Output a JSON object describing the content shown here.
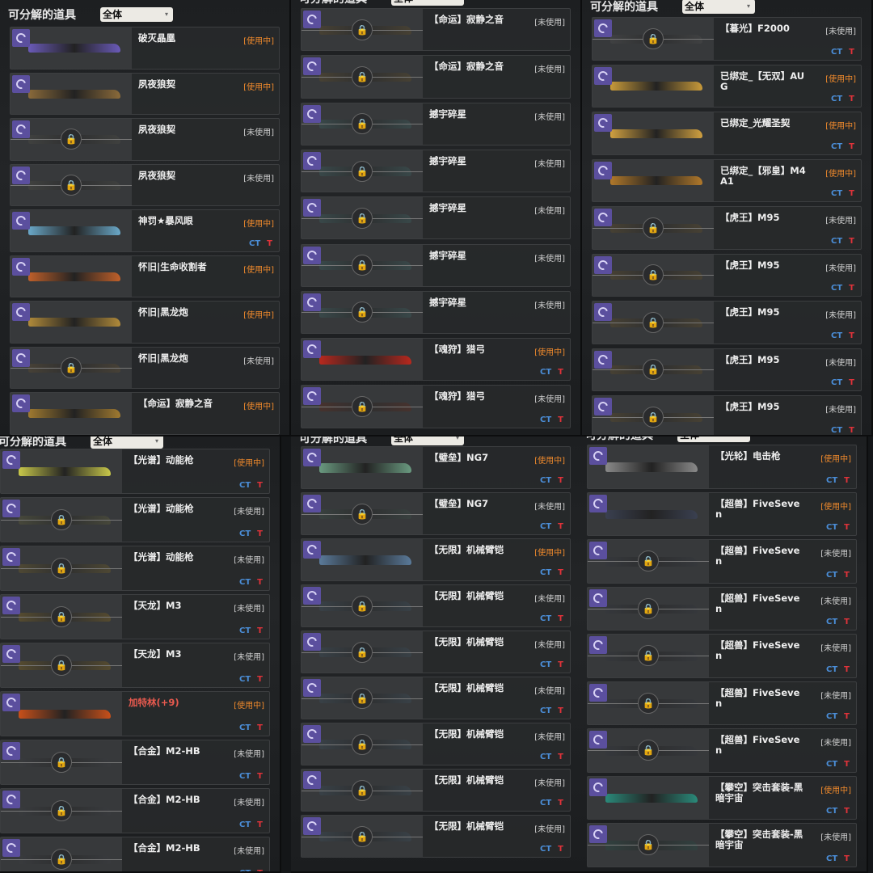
{
  "panels": [
    {
      "title": "可分解的道具",
      "filter": "全体",
      "items": [
        {
          "name": "破灭晶凰",
          "status": "[使用中]",
          "in_use": true,
          "ct_t": false,
          "locked": false,
          "art": "#6a5ab8"
        },
        {
          "name": "夙夜狼契",
          "status": "[使用中]",
          "in_use": true,
          "ct_t": false,
          "locked": false,
          "art": "#8a6a3a"
        },
        {
          "name": "夙夜狼契",
          "status": "[未使用]",
          "in_use": false,
          "ct_t": false,
          "locked": true,
          "art": "#4a4a44"
        },
        {
          "name": "夙夜狼契",
          "status": "[未使用]",
          "in_use": false,
          "ct_t": false,
          "locked": true,
          "art": "#4a4a44"
        },
        {
          "name": "神罚★暴风眼",
          "status": "[使用中]",
          "in_use": true,
          "ct_t": true,
          "locked": false,
          "art": "#6aa8c8"
        },
        {
          "name": "怀旧|生命收割者",
          "status": "[使用中]",
          "in_use": true,
          "ct_t": false,
          "locked": false,
          "art": "#c0602a"
        },
        {
          "name": "怀旧|黑龙炮",
          "status": "[使用中]",
          "in_use": true,
          "ct_t": false,
          "locked": false,
          "art": "#b08a3a"
        },
        {
          "name": "怀旧|黑龙炮",
          "status": "[未使用]",
          "in_use": false,
          "ct_t": false,
          "locked": true,
          "art": "#5a4a30"
        },
        {
          "name": "【命运】寂静之音",
          "status": "[使用中]",
          "in_use": true,
          "ct_t": false,
          "locked": false,
          "art": "#a07a30"
        }
      ]
    },
    {
      "title": "可分解的道具",
      "filter": "全体",
      "items": [
        {
          "name": "【命运】寂静之音",
          "status": "[未使用]",
          "in_use": false,
          "ct_t": false,
          "locked": true,
          "art": "#5a4a2a"
        },
        {
          "name": "【命运】寂静之音",
          "status": "[未使用]",
          "in_use": false,
          "ct_t": false,
          "locked": true,
          "art": "#5a4a2a"
        },
        {
          "name": "撼宇碎星",
          "status": "[未使用]",
          "in_use": false,
          "ct_t": false,
          "locked": true,
          "art": "#3a5a5a"
        },
        {
          "name": "撼宇碎星",
          "status": "[未使用]",
          "in_use": false,
          "ct_t": false,
          "locked": true,
          "art": "#3a5a5a"
        },
        {
          "name": "撼宇碎星",
          "status": "[未使用]",
          "in_use": false,
          "ct_t": false,
          "locked": true,
          "art": "#3a5a5a"
        },
        {
          "name": "撼宇碎星",
          "status": "[未使用]",
          "in_use": false,
          "ct_t": false,
          "locked": true,
          "art": "#3a5a5a"
        },
        {
          "name": "撼宇碎星",
          "status": "[未使用]",
          "in_use": false,
          "ct_t": false,
          "locked": true,
          "art": "#3a5a5a"
        },
        {
          "name": "【魂狩】猎弓",
          "status": "[使用中]",
          "in_use": true,
          "ct_t": true,
          "locked": false,
          "art": "#b8281e"
        },
        {
          "name": "【魂狩】猎弓",
          "status": "[未使用]",
          "in_use": false,
          "ct_t": true,
          "locked": true,
          "art": "#5a2a1e"
        }
      ]
    },
    {
      "title": "可分解的道具",
      "filter": "全体",
      "items": [
        {
          "name": "【暮光】F2000",
          "status": "[未使用]",
          "in_use": false,
          "ct_t": true,
          "locked": true,
          "art": "#4a4a4a"
        },
        {
          "name": "已绑定_【无双】AUG",
          "status": "[使用中]",
          "in_use": true,
          "ct_t": true,
          "locked": false,
          "art": "#c89a3a"
        },
        {
          "name": "已绑定_光耀圣契",
          "status": "[使用中]",
          "in_use": true,
          "ct_t": true,
          "locked": false,
          "art": "#d0a040"
        },
        {
          "name": "已绑定_【邪皇】M4A1",
          "status": "[使用中]",
          "in_use": true,
          "ct_t": true,
          "locked": false,
          "art": "#b0782a"
        },
        {
          "name": "【虎王】M95",
          "status": "[未使用]",
          "in_use": false,
          "ct_t": true,
          "locked": true,
          "art": "#5a4a2a"
        },
        {
          "name": "【虎王】M95",
          "status": "[未使用]",
          "in_use": false,
          "ct_t": true,
          "locked": true,
          "art": "#5a4a2a"
        },
        {
          "name": "【虎王】M95",
          "status": "[未使用]",
          "in_use": false,
          "ct_t": true,
          "locked": true,
          "art": "#5a4a2a"
        },
        {
          "name": "【虎王】M95",
          "status": "[未使用]",
          "in_use": false,
          "ct_t": true,
          "locked": true,
          "art": "#5a4a2a"
        },
        {
          "name": "【虎王】M95",
          "status": "[未使用]",
          "in_use": false,
          "ct_t": true,
          "locked": true,
          "art": "#5a4a2a"
        }
      ]
    },
    {
      "title": "可分解的道具",
      "filter": "全体",
      "items": [
        {
          "name": "【光谱】动能枪",
          "status": "[使用中]",
          "in_use": true,
          "ct_t": true,
          "locked": false,
          "art": "#c8c84a"
        },
        {
          "name": "【光谱】动能枪",
          "status": "[未使用]",
          "in_use": false,
          "ct_t": true,
          "locked": true,
          "art": "#5a5a3a"
        },
        {
          "name": "【光谱】动能枪",
          "status": "[未使用]",
          "in_use": false,
          "ct_t": true,
          "locked": true,
          "art": "#6a5a2a"
        },
        {
          "name": "【天龙】M3",
          "status": "[未使用]",
          "in_use": false,
          "ct_t": true,
          "locked": true,
          "art": "#7a6020"
        },
        {
          "name": "【天龙】M3",
          "status": "[未使用]",
          "in_use": false,
          "ct_t": true,
          "locked": true,
          "art": "#7a6020"
        },
        {
          "name": "加特林(+9)",
          "status": "[使用中]",
          "in_use": true,
          "ct_t": true,
          "locked": false,
          "art": "#c8501a",
          "highlight": true
        },
        {
          "name": "【合金】M2-HB",
          "status": "[未使用]",
          "in_use": false,
          "ct_t": true,
          "locked": true,
          "art": "#3a3c40"
        },
        {
          "name": "【合金】M2-HB",
          "status": "[未使用]",
          "in_use": false,
          "ct_t": true,
          "locked": true,
          "art": "#3a3c40"
        },
        {
          "name": "【合金】M2-HB",
          "status": "[未使用]",
          "in_use": false,
          "ct_t": true,
          "locked": true,
          "art": "#3a3c40"
        }
      ]
    },
    {
      "title": "可分解的道具",
      "filter": "全体",
      "items": [
        {
          "name": "【璧垒】NG7",
          "status": "[使用中]",
          "in_use": true,
          "ct_t": true,
          "locked": false,
          "art": "#6a9a80"
        },
        {
          "name": "【璧垒】NG7",
          "status": "[未使用]",
          "in_use": false,
          "ct_t": true,
          "locked": true,
          "art": "#3a4a44"
        },
        {
          "name": "【无限】机械臂铠",
          "status": "[使用中]",
          "in_use": true,
          "ct_t": true,
          "locked": false,
          "art": "#5a7a9a"
        },
        {
          "name": "【无限】机械臂铠",
          "status": "[未使用]",
          "in_use": false,
          "ct_t": true,
          "locked": true,
          "art": "#3a4a55"
        },
        {
          "name": "【无限】机械臂铠",
          "status": "[未使用]",
          "in_use": false,
          "ct_t": true,
          "locked": true,
          "art": "#3a4a55"
        },
        {
          "name": "【无限】机械臂铠",
          "status": "[未使用]",
          "in_use": false,
          "ct_t": true,
          "locked": true,
          "art": "#3a4a55"
        },
        {
          "name": "【无限】机械臂铠",
          "status": "[未使用]",
          "in_use": false,
          "ct_t": true,
          "locked": true,
          "art": "#3a4a55"
        },
        {
          "name": "【无限】机械臂铠",
          "status": "[未使用]",
          "in_use": false,
          "ct_t": true,
          "locked": true,
          "art": "#3a4a55"
        },
        {
          "name": "【无限】机械臂铠",
          "status": "[未使用]",
          "in_use": false,
          "ct_t": true,
          "locked": true,
          "art": "#3a4a55"
        }
      ]
    },
    {
      "title": "可分解的道具",
      "filter": "全体",
      "items": [
        {
          "name": "【光轮】电击枪",
          "status": "[使用中]",
          "in_use": true,
          "ct_t": true,
          "locked": false,
          "art": "#8a8a8a"
        },
        {
          "name": "【超兽】FiveSeven",
          "status": "[使用中]",
          "in_use": true,
          "ct_t": true,
          "locked": false,
          "art": "#3a4050"
        },
        {
          "name": "【超兽】FiveSeven",
          "status": "[未使用]",
          "in_use": false,
          "ct_t": true,
          "locked": true,
          "art": "#33363c"
        },
        {
          "name": "【超兽】FiveSeven",
          "status": "[未使用]",
          "in_use": false,
          "ct_t": true,
          "locked": true,
          "art": "#33363c"
        },
        {
          "name": "【超兽】FiveSeven",
          "status": "[未使用]",
          "in_use": false,
          "ct_t": true,
          "locked": true,
          "art": "#33363c"
        },
        {
          "name": "【超兽】FiveSeven",
          "status": "[未使用]",
          "in_use": false,
          "ct_t": true,
          "locked": true,
          "art": "#33363c"
        },
        {
          "name": "【超兽】FiveSeven",
          "status": "[未使用]",
          "in_use": false,
          "ct_t": true,
          "locked": true,
          "art": "#33363c"
        },
        {
          "name": "【攀空】突击套装-黑暗宇宙",
          "status": "[使用中]",
          "in_use": true,
          "ct_t": true,
          "locked": false,
          "art": "#2a8a7a"
        },
        {
          "name": "【攀空】突击套装-黑暗宇宙",
          "status": "[未使用]",
          "in_use": false,
          "ct_t": true,
          "locked": true,
          "art": "#2a4a44"
        }
      ]
    }
  ],
  "labels": {
    "ct": "CT",
    "t": "T",
    "lock": "🔒",
    "dropdown": "▾"
  }
}
